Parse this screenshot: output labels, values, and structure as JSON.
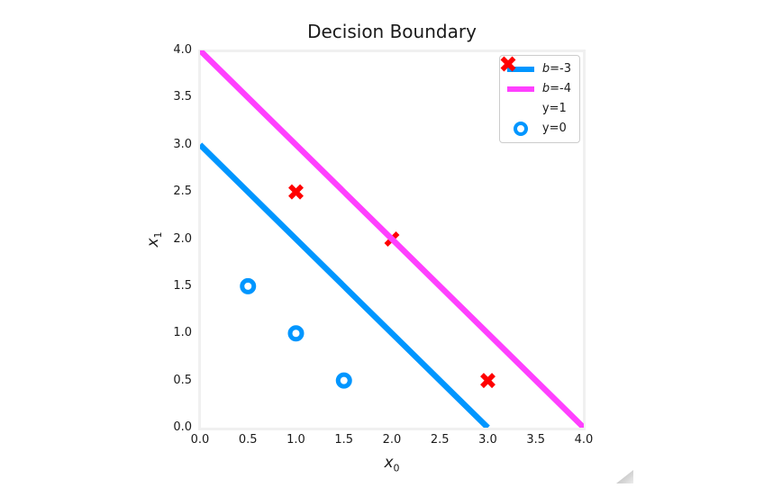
{
  "figure": {
    "title": "Decision Boundary",
    "x_axis": {
      "label_base": "x",
      "label_sub": "0",
      "ticks": [
        "0.0",
        "0.5",
        "1.0",
        "1.5",
        "2.0",
        "2.5",
        "3.0",
        "3.5",
        "4.0"
      ]
    },
    "y_axis": {
      "label_base": "x",
      "label_sub": "1",
      "ticks": [
        "0.0",
        "0.5",
        "1.0",
        "1.5",
        "2.0",
        "2.5",
        "3.0",
        "3.5",
        "4.0"
      ]
    },
    "axes_edge_color": "#f0f0f0",
    "background_color": "#ffffff",
    "text_color": "#1a1a1a"
  },
  "legend": {
    "position": "upper right",
    "border_color": "#cccccc",
    "items": [
      {
        "type": "line",
        "color": "#0096ff",
        "label_italic": "b",
        "label_rest": "=-3"
      },
      {
        "type": "line",
        "color": "#ff40ff",
        "label_italic": "b",
        "label_rest": "=-4"
      },
      {
        "type": "marker-x",
        "color": "#ff0000",
        "label_italic": "",
        "label_rest": "y=1"
      },
      {
        "type": "marker-o",
        "color": "#0096ff",
        "label_italic": "",
        "label_rest": "y=0"
      }
    ]
  },
  "chart_data": {
    "type": "scatter",
    "title": "Decision Boundary",
    "xlabel": "x_0",
    "ylabel": "x_1",
    "xlim": [
      0.0,
      4.0
    ],
    "ylim": [
      0.0,
      4.0
    ],
    "x_tick_values": [
      0.0,
      0.5,
      1.0,
      1.5,
      2.0,
      2.5,
      3.0,
      3.5,
      4.0
    ],
    "y_tick_values": [
      0.0,
      0.5,
      1.0,
      1.5,
      2.0,
      2.5,
      3.0,
      3.5,
      4.0
    ],
    "grid": false,
    "legend_position": "upper right",
    "series": [
      {
        "name": "b=-3",
        "kind": "line",
        "color": "#0096ff",
        "linewidth": 6.5,
        "points": [
          [
            0,
            3
          ],
          [
            3,
            0
          ]
        ]
      },
      {
        "name": "b=-4",
        "kind": "line",
        "color": "#ff40ff",
        "linewidth": 6.5,
        "points": [
          [
            0,
            4
          ],
          [
            4,
            0
          ]
        ]
      },
      {
        "name": "y=1",
        "kind": "scatter",
        "marker": "x",
        "color": "#ff0000",
        "points": [
          [
            1,
            2.5
          ],
          [
            2,
            2
          ],
          [
            3,
            0.5
          ]
        ]
      },
      {
        "name": "y=0",
        "kind": "scatter",
        "marker": "o",
        "color": "#0096ff",
        "points": [
          [
            0.5,
            1.5
          ],
          [
            1,
            1
          ],
          [
            1.5,
            0.5
          ]
        ]
      }
    ]
  },
  "misc": {
    "resize_grip": "se-corner"
  }
}
